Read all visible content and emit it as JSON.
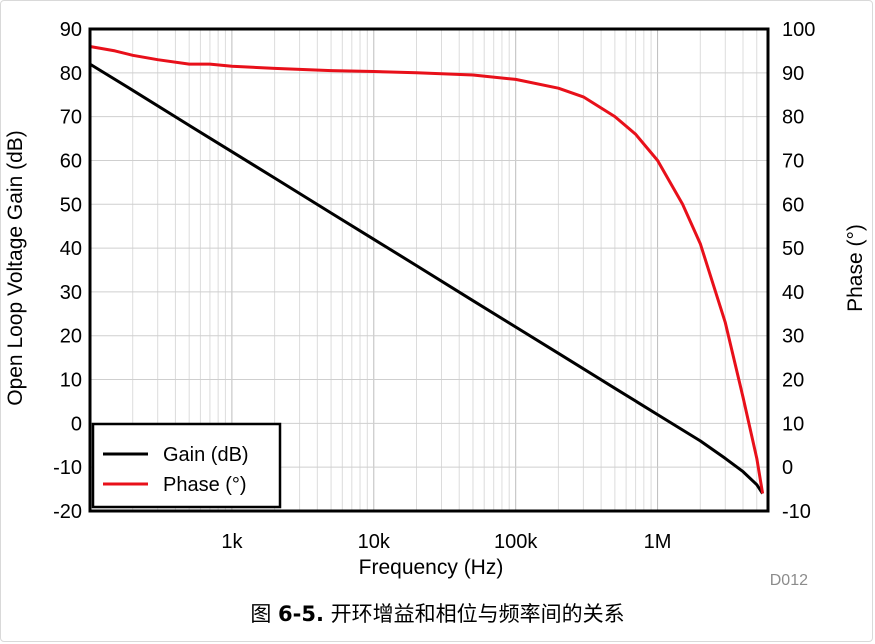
{
  "caption": {
    "prefix": "图 ",
    "figure_number": "6-5.",
    "text": " 开环增益和相位与频率间的关系"
  },
  "figure_code": "D012",
  "chart_data": {
    "type": "line",
    "xlabel": "Frequency (Hz)",
    "ylabel": "Open Loop Voltage Gain (dB)",
    "y2label": "Phase (°)",
    "xscale": "log",
    "xlim": [
      100,
      6000000
    ],
    "ylim": [
      -20,
      90
    ],
    "y2lim": [
      -10,
      100
    ],
    "xticks": [
      {
        "value": 1000,
        "label": "1k"
      },
      {
        "value": 10000,
        "label": "10k"
      },
      {
        "value": 100000,
        "label": "100k"
      },
      {
        "value": 1000000,
        "label": "1M"
      }
    ],
    "yticks": [
      "90",
      "80",
      "70",
      "60",
      "50",
      "40",
      "30",
      "20",
      "10",
      "0",
      "-10",
      "-20"
    ],
    "y2ticks": [
      "100",
      "90",
      "80",
      "70",
      "60",
      "50",
      "40",
      "30",
      "20",
      "10",
      "0",
      "-10"
    ],
    "grid": true,
    "legend_position": "bottom-left",
    "series": [
      {
        "name": "Gain (dB)",
        "axis": "left",
        "color": "#000000",
        "x": [
          100,
          200,
          500,
          1000,
          2000,
          5000,
          10000,
          20000,
          50000,
          100000,
          200000,
          500000,
          1000000,
          2000000,
          3000000,
          4000000,
          5000000,
          5500000
        ],
        "y": [
          82,
          76,
          68,
          62,
          56,
          48,
          42,
          36,
          28,
          22,
          16,
          8,
          2,
          -4,
          -8,
          -11,
          -14,
          -16
        ]
      },
      {
        "name": "Phase (°)",
        "axis": "right",
        "color": "#e8101a",
        "x": [
          100,
          150,
          200,
          300,
          500,
          700,
          1000,
          2000,
          5000,
          10000,
          20000,
          50000,
          100000,
          200000,
          300000,
          500000,
          700000,
          1000000,
          1500000,
          2000000,
          3000000,
          4000000,
          5000000,
          5500000
        ],
        "y": [
          96,
          95,
          94,
          93,
          92,
          92,
          91.5,
          91,
          90.5,
          90.3,
          90,
          89.5,
          88.5,
          86.5,
          84.5,
          80,
          76,
          70,
          60,
          51,
          33,
          16,
          2,
          -6
        ]
      }
    ]
  }
}
